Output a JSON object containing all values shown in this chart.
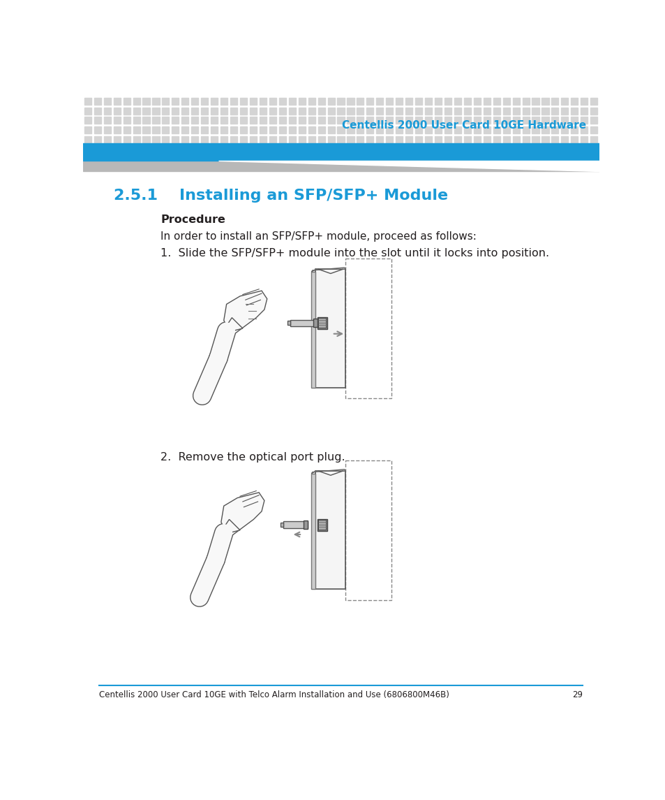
{
  "header_title": "Centellis 2000 User Card 10GE Hardware",
  "header_title_color": "#1a9ad7",
  "header_bg_color": "#1a9ad7",
  "header_dot_color": "#d4d4d4",
  "section_number": "2.5.1",
  "section_title": "Installing an SFP/SFP+ Module",
  "section_color": "#1a9ad7",
  "subsection_label": "Procedure",
  "intro_text": "In order to install an SFP/SFP+ module, proceed as follows:",
  "step1_text": "1.  Slide the SFP/SFP+ module into the slot until it locks into position.",
  "step2_text": "2.  Remove the optical port plug.",
  "footer_text": "Centellis 2000 User Card 10GE with Telco Alarm Installation and Use (6806800M46B)",
  "footer_page": "29",
  "footer_line_color": "#1a9ad7",
  "bg_color": "#ffffff",
  "text_color": "#231f20",
  "body_font_size": 11,
  "step_font_size": 12
}
